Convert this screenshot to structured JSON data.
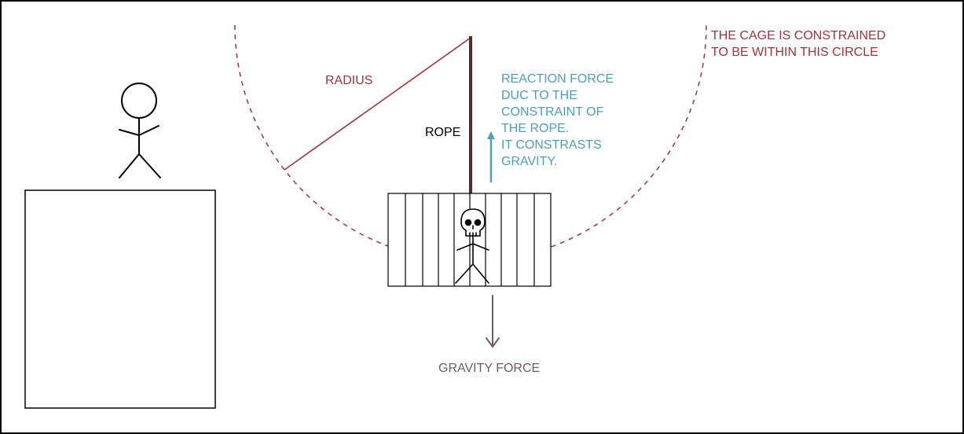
{
  "labels": {
    "radius": "RADIUS",
    "rope": "ROPE",
    "reaction_force": [
      "REACTION FORCE",
      "DUC TO THE",
      "CONSTRAINT OF",
      "THE ROPE.",
      "IT CONSTRASTS",
      "GRAVITY."
    ],
    "constraint_circle": [
      "THE CAGE IS CONSTRAINED",
      "TO BE WITHIN THIS CIRCLE"
    ],
    "gravity_force": "GRAVITY FORCE"
  },
  "colors": {
    "constraint": "#a2333a",
    "reaction": "#4c9fb6",
    "gravity": "#6e5a66",
    "rope": "#5c2a2d",
    "ink": "#000000"
  }
}
